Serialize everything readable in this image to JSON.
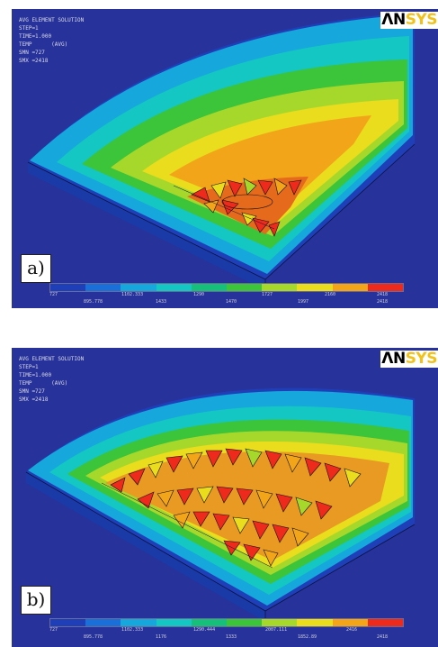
{
  "panels": [
    {
      "id": "a",
      "label": "a)",
      "info_lines": [
        "AVG ELEMENT SOLUTION",
        "STEP=1",
        "TIME=1.000",
        "TEMP      (AVG)",
        "SMN =727",
        "SMX =2418"
      ],
      "legend_top": [
        "727",
        "1102.333",
        "1290",
        "1727",
        "2160",
        "2418"
      ],
      "legend_bottom": [
        "895.778",
        "1433",
        "1470",
        "1997",
        "2418"
      ]
    },
    {
      "id": "b",
      "label": "b)",
      "info_lines": [
        "AVG ELEMENT SOLUTION",
        "STEP=1",
        "TIME=1.000",
        "TEMP      (AVG)",
        "SMN =727",
        "SMX =2418"
      ],
      "legend_top": [
        "727",
        "1102.333",
        "1290.444",
        "2007.111",
        "2416"
      ],
      "legend_bottom": [
        "895.778",
        "1176",
        "1333",
        "1852.89",
        "2418"
      ]
    }
  ],
  "logo": {
    "an": "ΛN",
    "sys": "SYS"
  },
  "colors": {
    "background": "#27329a",
    "scale": [
      "#1f3fb8",
      "#1a70d8",
      "#16a7dd",
      "#15c7c2",
      "#17c07a",
      "#3cc43a",
      "#a6d82b",
      "#e9dd1d",
      "#f3a51a",
      "#ee2a1c"
    ]
  }
}
